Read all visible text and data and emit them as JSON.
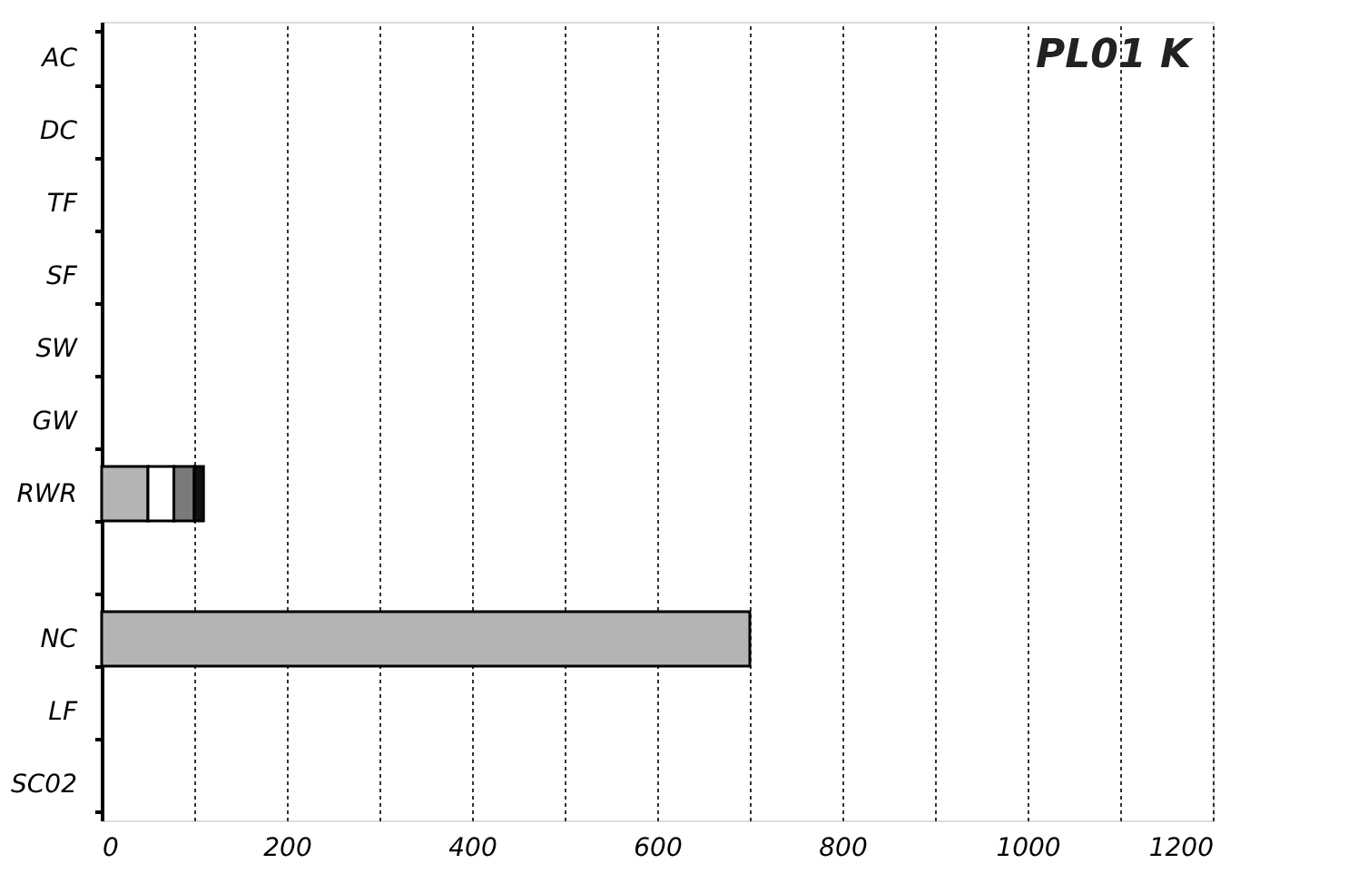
{
  "chart_data": {
    "type": "bar",
    "orientation": "horizontal",
    "stacked": true,
    "title": "PL01 K",
    "categories": [
      "AC",
      "DC",
      "TF",
      "SF",
      "SW",
      "GW",
      "RWR",
      null,
      "NC",
      "LF",
      "SC02"
    ],
    "series": [
      {
        "color": "#b4b4b4",
        "values": [
          null,
          null,
          null,
          null,
          null,
          null,
          50,
          null,
          700,
          null,
          null
        ]
      },
      {
        "color": "#ffffff",
        "values": [
          null,
          null,
          null,
          null,
          null,
          null,
          28,
          null,
          null,
          null,
          null
        ]
      },
      {
        "color": "#7a7a7a",
        "values": [
          null,
          null,
          null,
          null,
          null,
          null,
          22,
          null,
          null,
          null,
          null
        ]
      },
      {
        "color": "#111111",
        "values": [
          null,
          null,
          null,
          null,
          null,
          null,
          10,
          null,
          null,
          null,
          null
        ]
      }
    ],
    "xlim": [
      0,
      1200
    ],
    "xticks": [
      0,
      {
        "value": 100,
        "label": null
      },
      200,
      {
        "value": 300,
        "label": null
      },
      400,
      {
        "value": 500,
        "label": null
      },
      600,
      {
        "value": 700,
        "label": null
      },
      800,
      {
        "value": 900,
        "label": null
      },
      1000,
      {
        "value": 1100,
        "label": null
      },
      1200
    ],
    "grid": "x",
    "legend": false
  }
}
